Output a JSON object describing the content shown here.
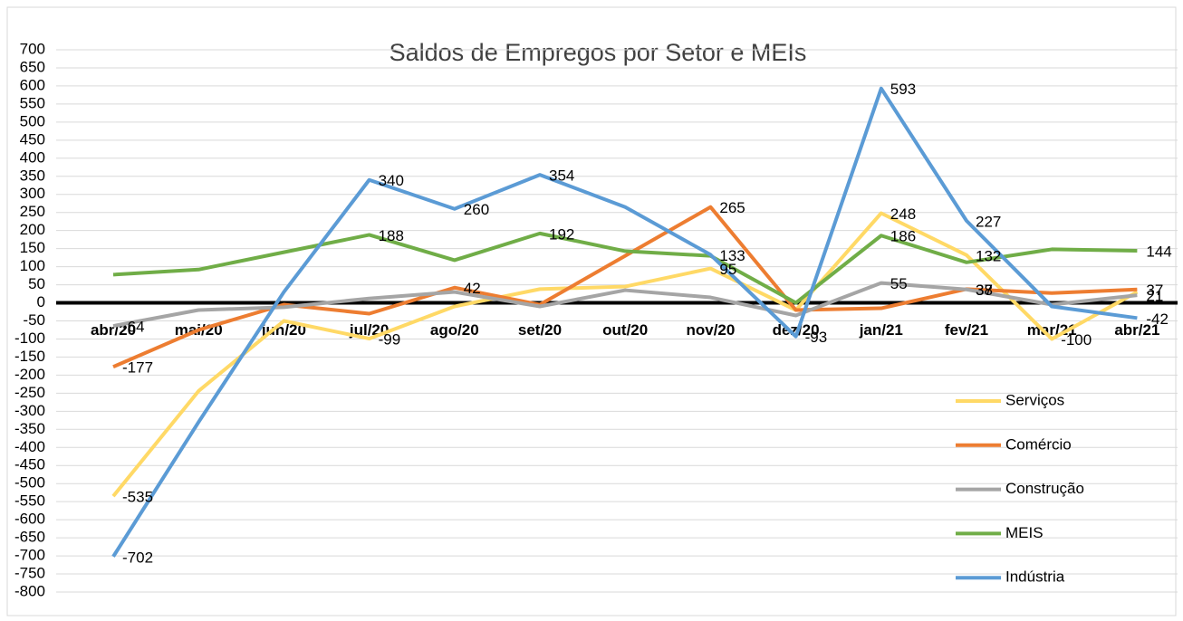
{
  "chart_data": {
    "type": "line",
    "title": "Saldos de Empregos por Setor e MEIs",
    "categories": [
      "abr/20",
      "mai/20",
      "jun/20",
      "jul/20",
      "ago/20",
      "set/20",
      "out/20",
      "nov/20",
      "dez/20",
      "jan/21",
      "fev/21",
      "mar/21",
      "abr/21"
    ],
    "ylim": [
      -800,
      700
    ],
    "yticks": [
      -800,
      -750,
      -700,
      -650,
      -600,
      -550,
      -500,
      -450,
      -400,
      -350,
      -300,
      -250,
      -200,
      -150,
      -100,
      -50,
      0,
      50,
      100,
      150,
      200,
      250,
      300,
      350,
      400,
      450,
      500,
      550,
      600,
      650,
      700
    ],
    "grid": true,
    "legend": "right",
    "series": [
      {
        "name": "Serviços",
        "color": "#FFD966",
        "values": [
          -535,
          -244,
          -50,
          -99,
          -10,
          38,
          45,
          95,
          -20,
          248,
          132,
          -100,
          30
        ],
        "labels_at": [
          0,
          3,
          7,
          9,
          10,
          11
        ]
      },
      {
        "name": "Comércio",
        "color": "#ED7D31",
        "values": [
          -177,
          -75,
          -5,
          -30,
          42,
          -5,
          130,
          265,
          -20,
          -15,
          38,
          27,
          37
        ],
        "labels_at": [
          0,
          4,
          7,
          10,
          12
        ]
      },
      {
        "name": "Construção",
        "color": "#A5A5A5",
        "values": [
          -64,
          -20,
          -12,
          12,
          30,
          -10,
          35,
          15,
          -35,
          55,
          37,
          -5,
          21
        ],
        "labels_at": [
          0,
          9,
          10,
          12
        ]
      },
      {
        "name": "MEIS",
        "color": "#70AD47",
        "values": [
          78,
          92,
          140,
          188,
          118,
          192,
          143,
          130,
          0,
          186,
          112,
          148,
          144
        ],
        "labels_at": [
          3,
          5,
          9,
          12
        ]
      },
      {
        "name": "Indústria",
        "color": "#5B9BD5",
        "values": [
          -702,
          -330,
          30,
          340,
          260,
          354,
          265,
          133,
          -93,
          593,
          227,
          -10,
          -42
        ],
        "labels_at": [
          0,
          3,
          4,
          5,
          7,
          8,
          9,
          10,
          12
        ]
      }
    ]
  }
}
